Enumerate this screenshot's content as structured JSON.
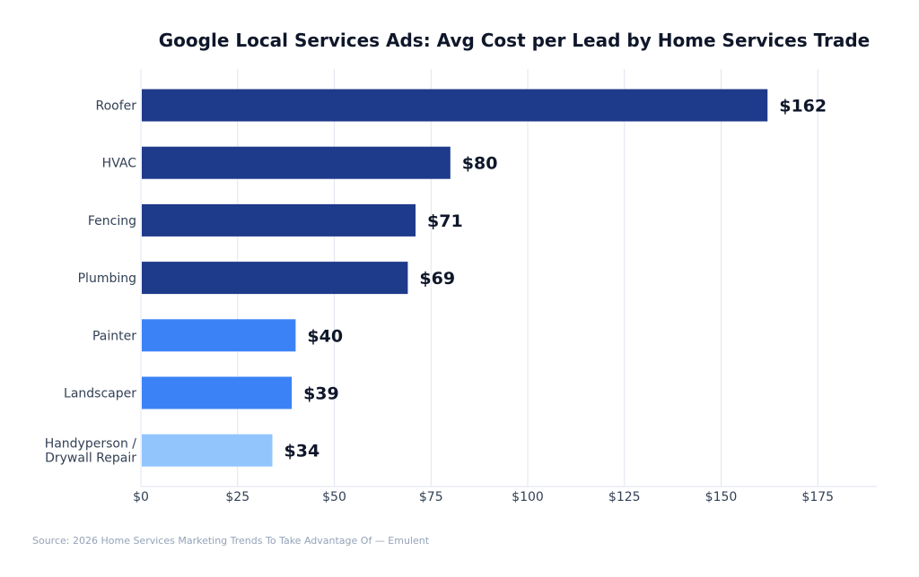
{
  "chart_data": {
    "type": "bar",
    "orientation": "horizontal",
    "title": "Google Local Services Ads: Avg Cost per Lead by Home Services Trade",
    "xlabel": "",
    "ylabel": "",
    "xlim": [
      0,
      190
    ],
    "x_ticks": [
      0,
      25,
      50,
      75,
      100,
      125,
      150,
      175
    ],
    "x_tick_labels": [
      "$0",
      "$25",
      "$50",
      "$75",
      "$100",
      "$125",
      "$150",
      "$175"
    ],
    "grid": true,
    "categories": [
      [
        "Roofer"
      ],
      [
        "HVAC"
      ],
      [
        "Fencing"
      ],
      [
        "Plumbing"
      ],
      [
        "Painter"
      ],
      [
        "Landscaper"
      ],
      [
        "Handyperson /",
        "Drywall Repair"
      ]
    ],
    "values": [
      162,
      80,
      71,
      69,
      40,
      39,
      34
    ],
    "value_labels": [
      "$162",
      "$80",
      "$71",
      "$69",
      "$40",
      "$39",
      "$34"
    ],
    "colors": [
      "#1e3a8a",
      "#1e3a8a",
      "#1e3a8a",
      "#1e3a8a",
      "#3b82f6",
      "#3b82f6",
      "#93c5fd"
    ]
  },
  "source": "Source: 2026 Home Services Marketing Trends To Take Advantage Of — Emulent"
}
